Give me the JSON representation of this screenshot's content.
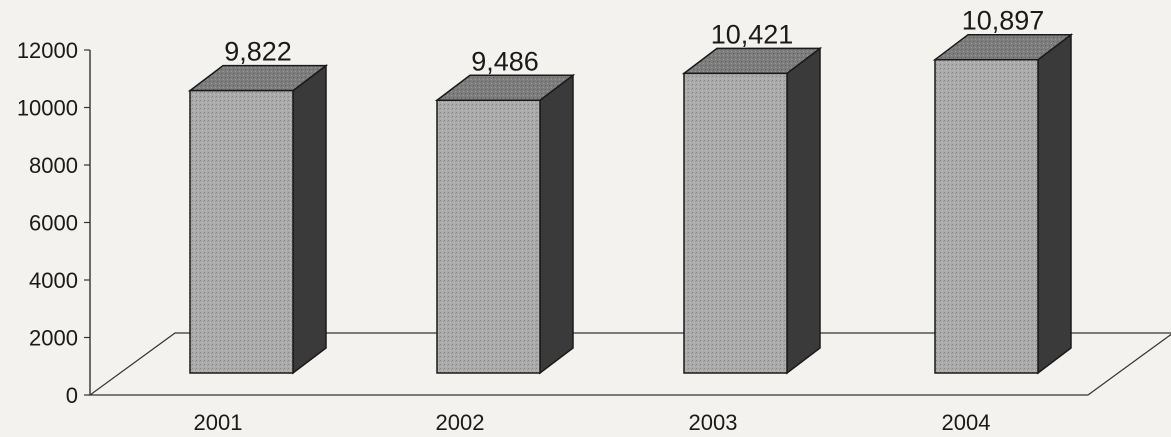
{
  "chart_data": {
    "type": "bar",
    "style": "3d-column",
    "title": "",
    "xlabel": "",
    "ylabel": "",
    "categories": [
      "2001",
      "2002",
      "2003",
      "2004"
    ],
    "values": [
      9822,
      9486,
      10421,
      10897
    ],
    "data_labels": [
      "9,822",
      "9,486",
      "10,421",
      "10,897"
    ],
    "y_ticks": [
      "0",
      "2000",
      "4000",
      "6000",
      "8000",
      "10000",
      "12000"
    ],
    "ylim": [
      0,
      12000
    ],
    "grid": false,
    "legend": "none",
    "colors": {
      "bar_front": "#a8a8a8",
      "bar_top": "#7a7a7a",
      "bar_side": "#3a3a3a",
      "outline": "#1a1a1a",
      "axis": "#333333"
    }
  }
}
